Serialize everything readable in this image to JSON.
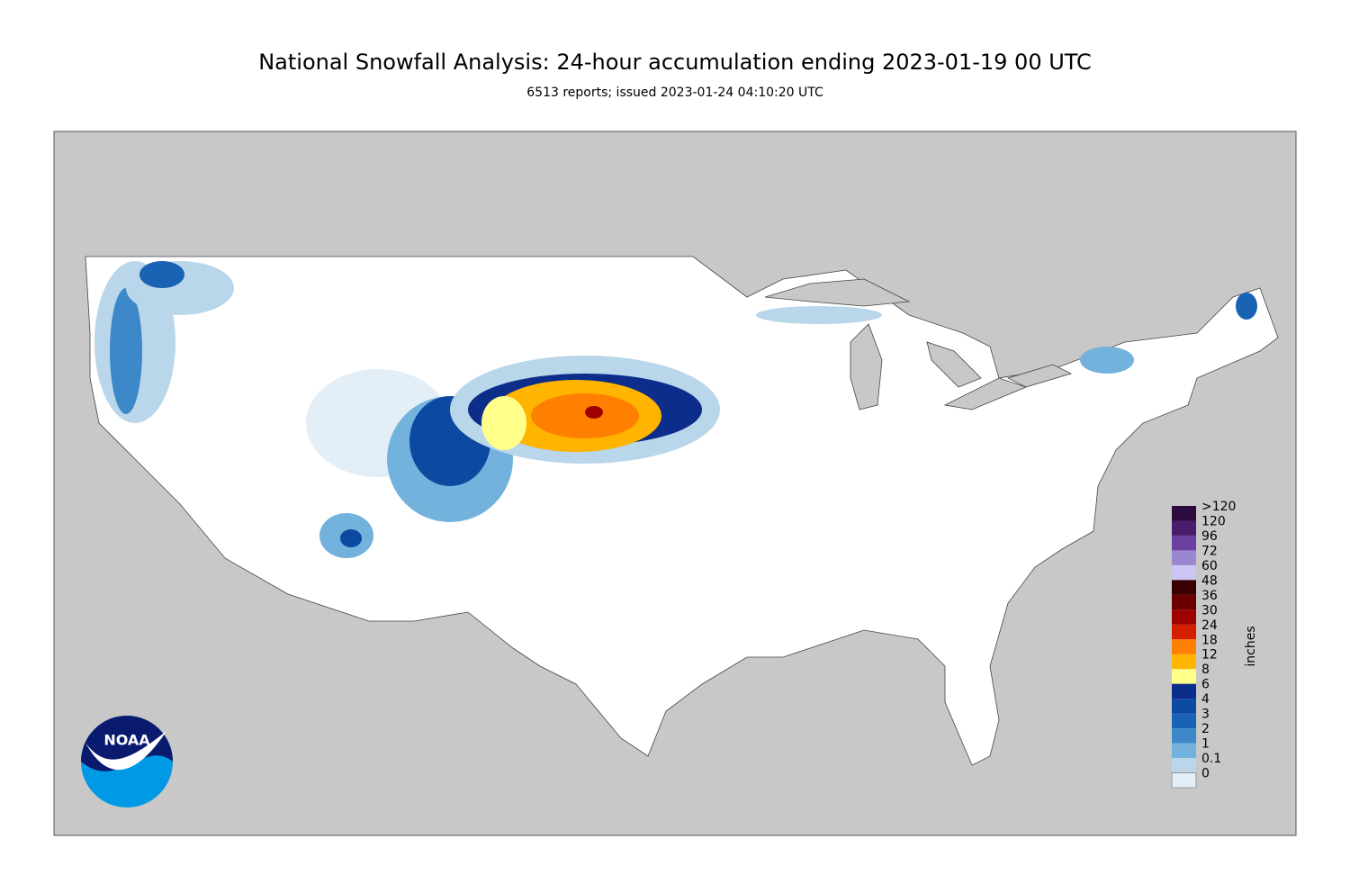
{
  "header": {
    "title": "National Snowfall Analysis: 24-hour accumulation ending 2023-01-19 00 UTC",
    "subtitle": "6513 reports; issued 2023-01-24 04:10:20 UTC"
  },
  "legend": {
    "unit": "inches",
    "items": [
      {
        "label": ">120",
        "color": "#2b0a3d"
      },
      {
        "label": "120",
        "color": "#4b1c6b"
      },
      {
        "label": "96",
        "color": "#6b3fa0"
      },
      {
        "label": "72",
        "color": "#9b86d1"
      },
      {
        "label": "60",
        "color": "#cbc6f3"
      },
      {
        "label": "48",
        "color": "#3a0000"
      },
      {
        "label": "36",
        "color": "#6b0000"
      },
      {
        "label": "30",
        "color": "#a00000"
      },
      {
        "label": "24",
        "color": "#d42000"
      },
      {
        "label": "18",
        "color": "#ff7f00"
      },
      {
        "label": "12",
        "color": "#ffb400"
      },
      {
        "label": "8",
        "color": "#ffff8a"
      },
      {
        "label": "6",
        "color": "#0c2d8a"
      },
      {
        "label": "4",
        "color": "#0b4aa0"
      },
      {
        "label": "3",
        "color": "#1a62b4"
      },
      {
        "label": "2",
        "color": "#3c88c8"
      },
      {
        "label": "1",
        "color": "#72b2dc"
      },
      {
        "label": "0.1",
        "color": "#b9d6ea"
      },
      {
        "label": "0",
        "color": "#e3eef7"
      }
    ]
  },
  "logo": {
    "text": "NOAA"
  }
}
